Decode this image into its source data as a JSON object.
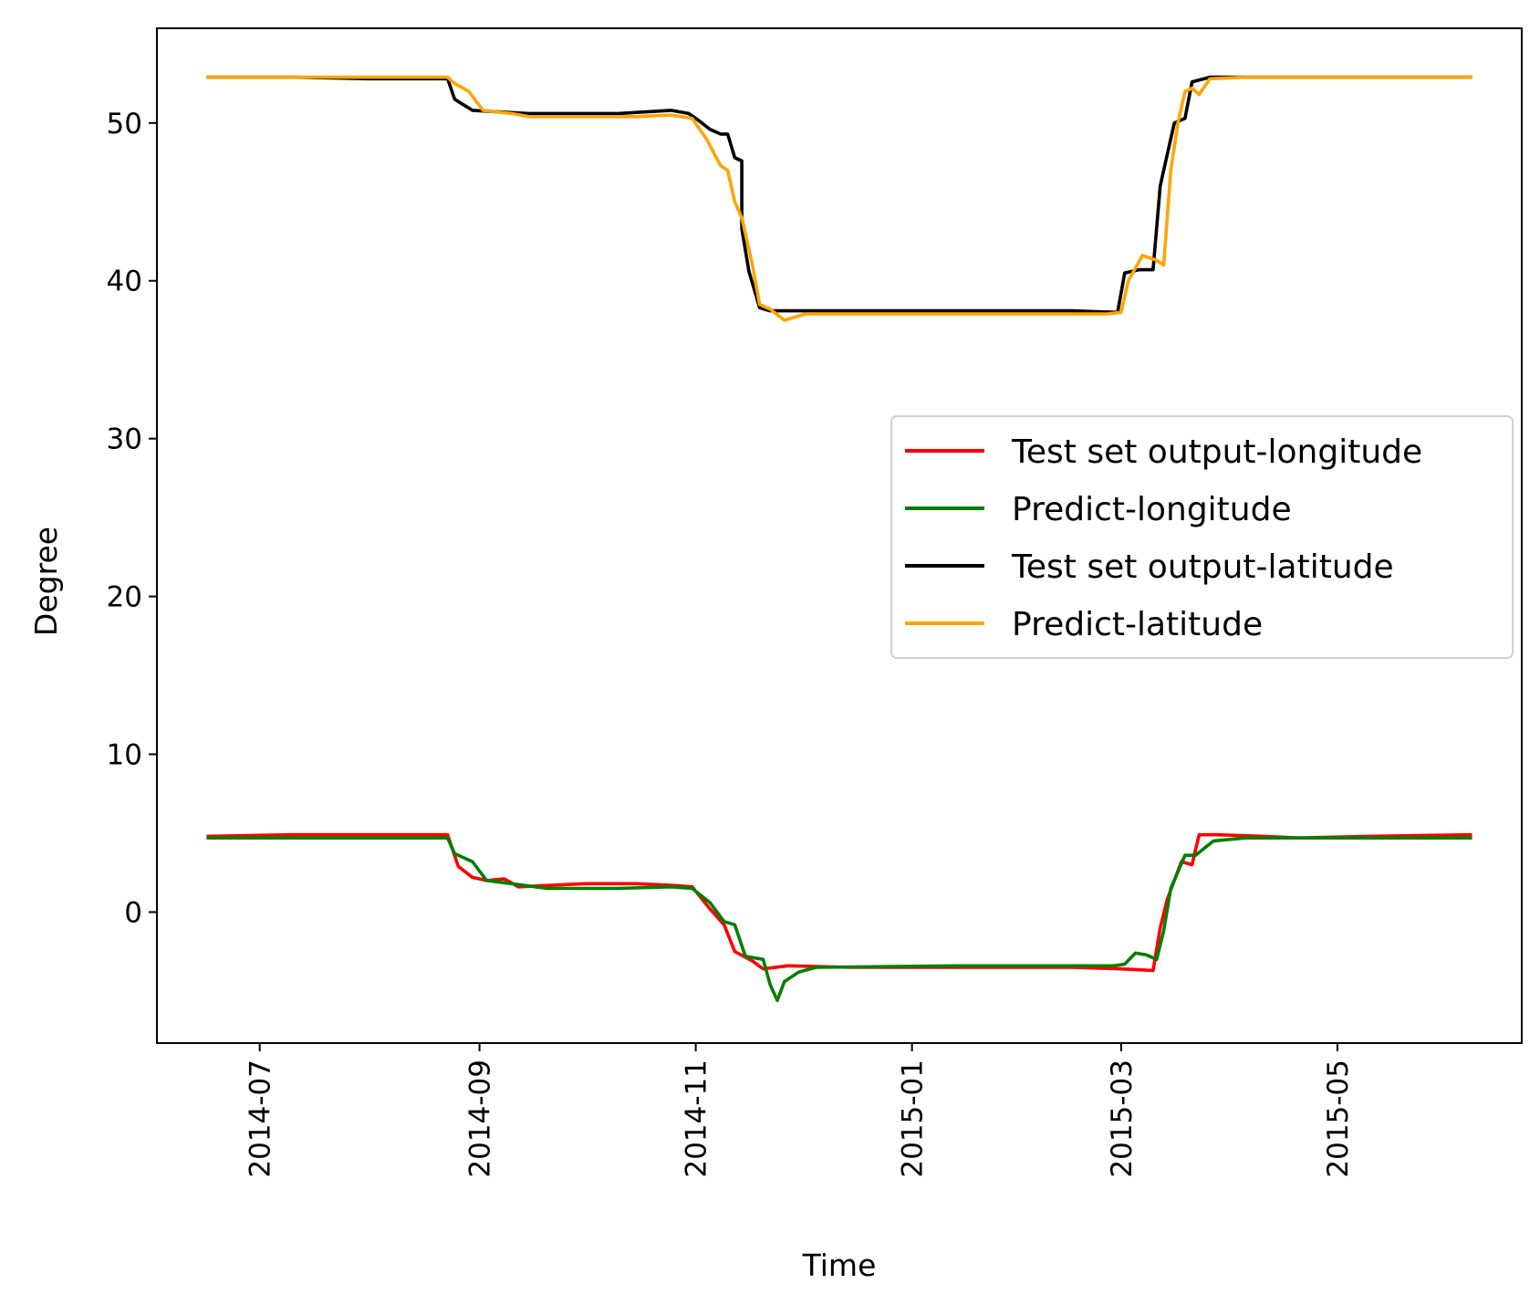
{
  "chart_data": {
    "type": "line",
    "xlabel": "Time",
    "ylabel": "Degree",
    "xlim": [
      "2014-06-02",
      "2015-06-22"
    ],
    "ylim": [
      -8.3,
      56.0
    ],
    "x_ticks": [
      "2014-07-01",
      "2014-09-01",
      "2014-11-01",
      "2015-01-01",
      "2015-03-01",
      "2015-05-01"
    ],
    "x_tick_labels": [
      "2014-07",
      "2014-09",
      "2014-11",
      "2015-01",
      "2015-03",
      "2015-05"
    ],
    "y_ticks": [
      0,
      10,
      20,
      30,
      40,
      50
    ],
    "y_tick_labels": [
      "0",
      "10",
      "20",
      "30",
      "40",
      "50"
    ],
    "grid": false,
    "legend_position": "center-right",
    "series": [
      {
        "name": "Test set output-longitude",
        "color": "#ff0000",
        "points": [
          [
            "2014-06-16",
            4.8
          ],
          [
            "2014-07-10",
            4.9
          ],
          [
            "2014-08-01",
            4.9
          ],
          [
            "2014-08-23",
            4.9
          ],
          [
            "2014-08-26",
            2.9
          ],
          [
            "2014-08-30",
            2.2
          ],
          [
            "2014-09-03",
            2.0
          ],
          [
            "2014-09-08",
            2.1
          ],
          [
            "2014-09-12",
            1.6
          ],
          [
            "2014-10-01",
            1.8
          ],
          [
            "2014-10-15",
            1.8
          ],
          [
            "2014-10-25",
            1.7
          ],
          [
            "2014-10-31",
            1.6
          ],
          [
            "2014-11-05",
            0.2
          ],
          [
            "2014-11-09",
            -0.8
          ],
          [
            "2014-11-12",
            -2.5
          ],
          [
            "2014-11-17",
            -3.1
          ],
          [
            "2014-11-20",
            -3.6
          ],
          [
            "2014-11-27",
            -3.4
          ],
          [
            "2014-12-15",
            -3.5
          ],
          [
            "2015-01-15",
            -3.5
          ],
          [
            "2015-02-15",
            -3.5
          ],
          [
            "2015-03-01",
            -3.6
          ],
          [
            "2015-03-10",
            -3.7
          ],
          [
            "2015-03-12",
            -1.0
          ],
          [
            "2015-03-14",
            0.8
          ],
          [
            "2015-03-18",
            3.2
          ],
          [
            "2015-03-21",
            3.0
          ],
          [
            "2015-03-23",
            4.9
          ],
          [
            "2015-03-28",
            4.9
          ],
          [
            "2015-04-10",
            4.8
          ],
          [
            "2015-04-20",
            4.7
          ],
          [
            "2015-05-10",
            4.8
          ],
          [
            "2015-06-08",
            4.9
          ]
        ]
      },
      {
        "name": "Predict-longitude",
        "color": "#008000",
        "points": [
          [
            "2014-06-16",
            4.7
          ],
          [
            "2014-07-15",
            4.7
          ],
          [
            "2014-08-23",
            4.7
          ],
          [
            "2014-08-25",
            3.7
          ],
          [
            "2014-08-30",
            3.2
          ],
          [
            "2014-09-03",
            2.0
          ],
          [
            "2014-09-10",
            1.8
          ],
          [
            "2014-09-20",
            1.5
          ],
          [
            "2014-10-10",
            1.5
          ],
          [
            "2014-10-25",
            1.6
          ],
          [
            "2014-10-31",
            1.5
          ],
          [
            "2014-11-05",
            0.6
          ],
          [
            "2014-11-09",
            -0.6
          ],
          [
            "2014-11-12",
            -0.8
          ],
          [
            "2014-11-15",
            -2.8
          ],
          [
            "2014-11-20",
            -3.0
          ],
          [
            "2014-11-22",
            -4.6
          ],
          [
            "2014-11-24",
            -5.6
          ],
          [
            "2014-11-26",
            -4.4
          ],
          [
            "2014-11-30",
            -3.8
          ],
          [
            "2014-12-05",
            -3.5
          ],
          [
            "2015-01-15",
            -3.4
          ],
          [
            "2015-02-27",
            -3.4
          ],
          [
            "2015-03-02",
            -3.3
          ],
          [
            "2015-03-05",
            -2.6
          ],
          [
            "2015-03-08",
            -2.7
          ],
          [
            "2015-03-11",
            -3.0
          ],
          [
            "2015-03-13",
            -1.2
          ],
          [
            "2015-03-15",
            1.5
          ],
          [
            "2015-03-19",
            3.6
          ],
          [
            "2015-03-22",
            3.6
          ],
          [
            "2015-03-27",
            4.5
          ],
          [
            "2015-04-05",
            4.7
          ],
          [
            "2015-06-08",
            4.7
          ]
        ]
      },
      {
        "name": "Test set output-latitude",
        "color": "#000000",
        "points": [
          [
            "2014-06-16",
            52.9
          ],
          [
            "2014-07-10",
            52.9
          ],
          [
            "2014-08-01",
            52.8
          ],
          [
            "2014-08-23",
            52.8
          ],
          [
            "2014-08-25",
            51.5
          ],
          [
            "2014-08-30",
            50.8
          ],
          [
            "2014-09-15",
            50.6
          ],
          [
            "2014-10-10",
            50.6
          ],
          [
            "2014-10-25",
            50.8
          ],
          [
            "2014-10-30",
            50.6
          ],
          [
            "2014-11-01",
            50.3
          ],
          [
            "2014-11-05",
            49.6
          ],
          [
            "2014-11-08",
            49.3
          ],
          [
            "2014-11-10",
            49.3
          ],
          [
            "2014-11-12",
            47.8
          ],
          [
            "2014-11-14",
            47.6
          ],
          [
            "2014-11-14",
            43.3
          ],
          [
            "2014-11-16",
            40.6
          ],
          [
            "2014-11-19",
            38.3
          ],
          [
            "2014-11-22",
            38.1
          ],
          [
            "2014-12-15",
            38.1
          ],
          [
            "2015-01-15",
            38.1
          ],
          [
            "2015-02-15",
            38.1
          ],
          [
            "2015-02-28",
            38.0
          ],
          [
            "2015-03-02",
            40.5
          ],
          [
            "2015-03-06",
            40.7
          ],
          [
            "2015-03-10",
            40.7
          ],
          [
            "2015-03-12",
            46.0
          ],
          [
            "2015-03-14",
            48.0
          ],
          [
            "2015-03-16",
            50.0
          ],
          [
            "2015-03-19",
            50.3
          ],
          [
            "2015-03-21",
            52.6
          ],
          [
            "2015-03-26",
            52.9
          ],
          [
            "2015-04-20",
            52.9
          ],
          [
            "2015-06-08",
            52.9
          ]
        ]
      },
      {
        "name": "Predict-latitude",
        "color": "#ffa500",
        "points": [
          [
            "2014-06-16",
            52.9
          ],
          [
            "2014-07-15",
            52.9
          ],
          [
            "2014-08-23",
            52.9
          ],
          [
            "2014-08-25",
            52.5
          ],
          [
            "2014-08-29",
            52.0
          ],
          [
            "2014-09-02",
            50.8
          ],
          [
            "2014-09-10",
            50.6
          ],
          [
            "2014-09-15",
            50.4
          ],
          [
            "2014-10-15",
            50.4
          ],
          [
            "2014-10-25",
            50.5
          ],
          [
            "2014-10-31",
            50.3
          ],
          [
            "2014-11-04",
            49.0
          ],
          [
            "2014-11-08",
            47.3
          ],
          [
            "2014-11-10",
            47.0
          ],
          [
            "2014-11-12",
            45.0
          ],
          [
            "2014-11-14",
            44.0
          ],
          [
            "2014-11-17",
            41.0
          ],
          [
            "2014-11-19",
            38.5
          ],
          [
            "2014-11-22",
            38.2
          ],
          [
            "2014-11-26",
            37.5
          ],
          [
            "2014-12-02",
            37.9
          ],
          [
            "2014-12-20",
            37.9
          ],
          [
            "2015-01-20",
            37.9
          ],
          [
            "2015-02-25",
            37.9
          ],
          [
            "2015-03-01",
            38.0
          ],
          [
            "2015-03-03",
            40.0
          ],
          [
            "2015-03-07",
            41.6
          ],
          [
            "2015-03-11",
            41.3
          ],
          [
            "2015-03-13",
            41.0
          ],
          [
            "2015-03-15",
            47.0
          ],
          [
            "2015-03-17",
            50.0
          ],
          [
            "2015-03-19",
            52.0
          ],
          [
            "2015-03-21",
            52.2
          ],
          [
            "2015-03-23",
            51.8
          ],
          [
            "2015-03-26",
            52.8
          ],
          [
            "2015-04-05",
            52.9
          ],
          [
            "2015-06-08",
            52.9
          ]
        ]
      }
    ]
  }
}
